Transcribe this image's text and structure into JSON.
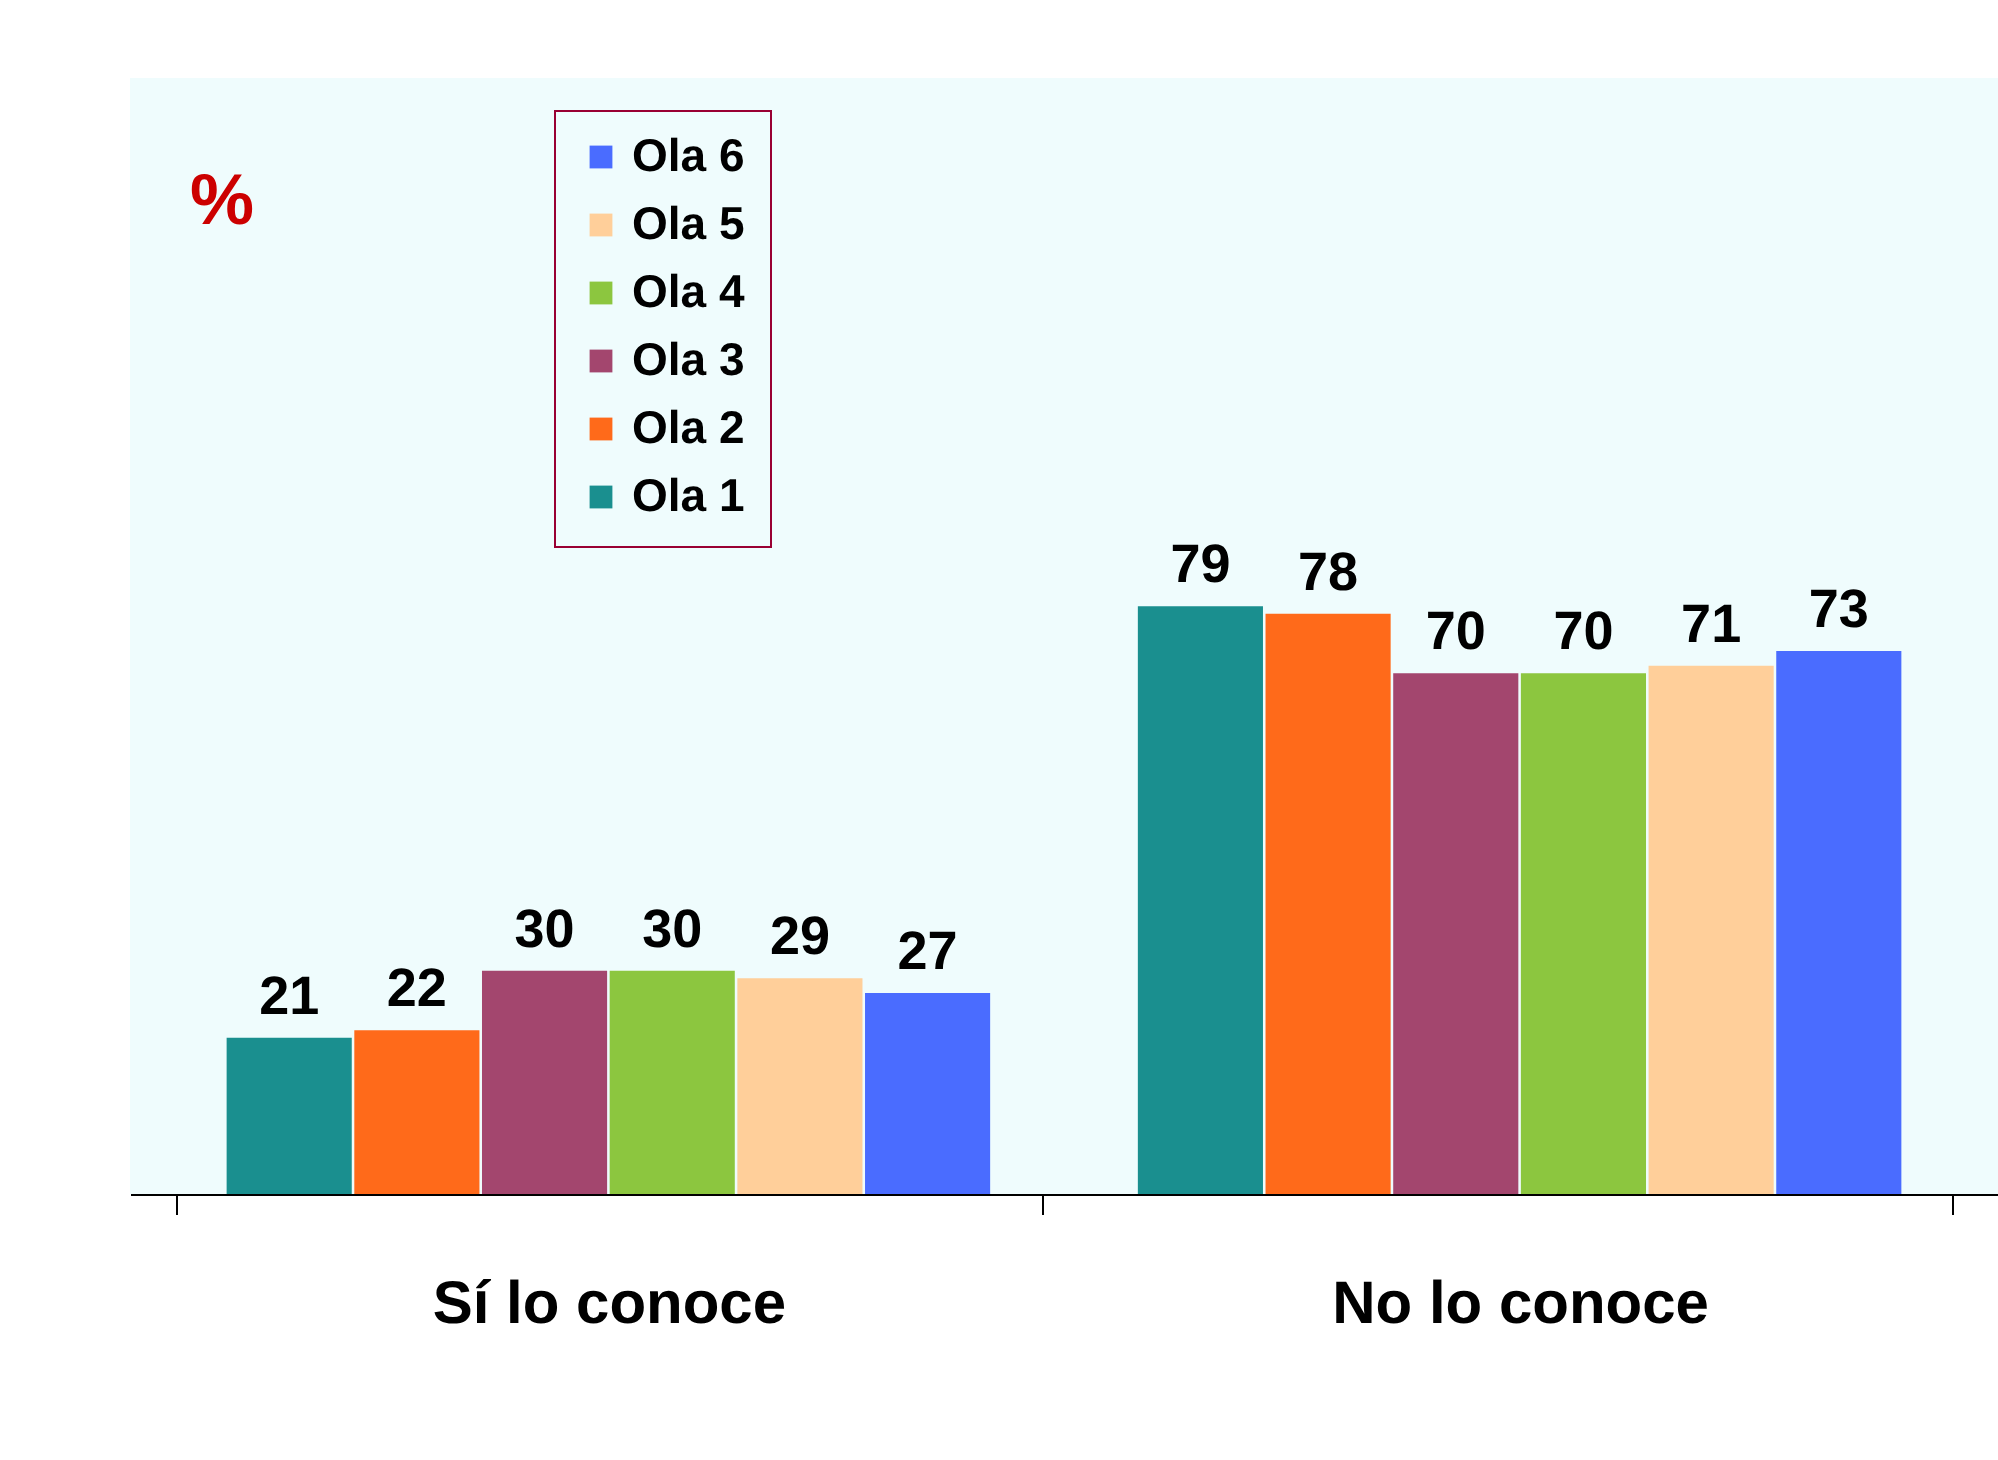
{
  "chart_data": {
    "type": "bar",
    "annotations": [
      "%"
    ],
    "categories": [
      "Sí lo conoce",
      "No lo conoce"
    ],
    "series": [
      {
        "name": "Ola 1",
        "color": "#1a8f8f",
        "values": [
          21,
          79
        ]
      },
      {
        "name": "Ola 2",
        "color": "#ff6a1a",
        "values": [
          22,
          78
        ]
      },
      {
        "name": "Ola 3",
        "color": "#a3466e",
        "values": [
          30,
          70
        ]
      },
      {
        "name": "Ola 4",
        "color": "#8cc63f",
        "values": [
          30,
          70
        ]
      },
      {
        "name": "Ola 5",
        "color": "#ffcf9a",
        "values": [
          29,
          71
        ]
      },
      {
        "name": "Ola 6",
        "color": "#4a6cff",
        "values": [
          27,
          73
        ]
      }
    ],
    "ylim": [
      0,
      150
    ],
    "data_labels": true,
    "legend": "top left",
    "grid": false
  }
}
